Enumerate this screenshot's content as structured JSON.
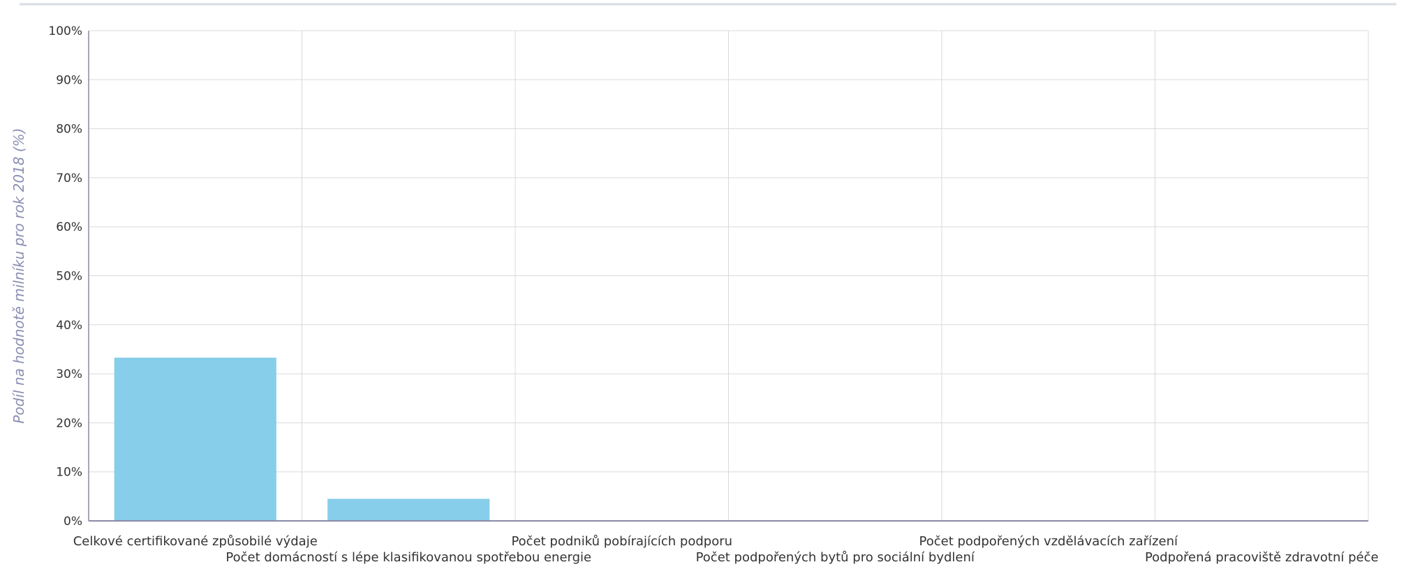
{
  "colors": {
    "bar": "#87ceeb",
    "grid": "#d9d9de",
    "axis": "#8a8aa6",
    "tick_text": "#333333",
    "ylabel_text": "#8a8fb3",
    "top_border": "#d9dde3"
  },
  "chart_data": {
    "type": "bar",
    "title": "",
    "xlabel": "",
    "ylabel": "Podíl na hodnotě milníku pro rok 2018 (%)",
    "ylim": [
      0,
      100
    ],
    "yticks": [
      "0%",
      "10%",
      "20%",
      "30%",
      "40%",
      "50%",
      "60%",
      "70%",
      "80%",
      "90%",
      "100%"
    ],
    "grid": true,
    "legend": "none",
    "categories": [
      "Celkové certifikované způsobilé výdaje",
      "Počet domácností s lépe klasifikovanou spotřebou energie",
      "Počet podniků pobírajících podporu",
      "Počet podpořených bytů pro sociální bydlení",
      "Počet podpořených vzdělávacích zařízení",
      "Podpořená pracoviště zdravotní péče"
    ],
    "values": [
      33.3,
      4.5,
      0,
      0,
      0,
      0
    ]
  }
}
